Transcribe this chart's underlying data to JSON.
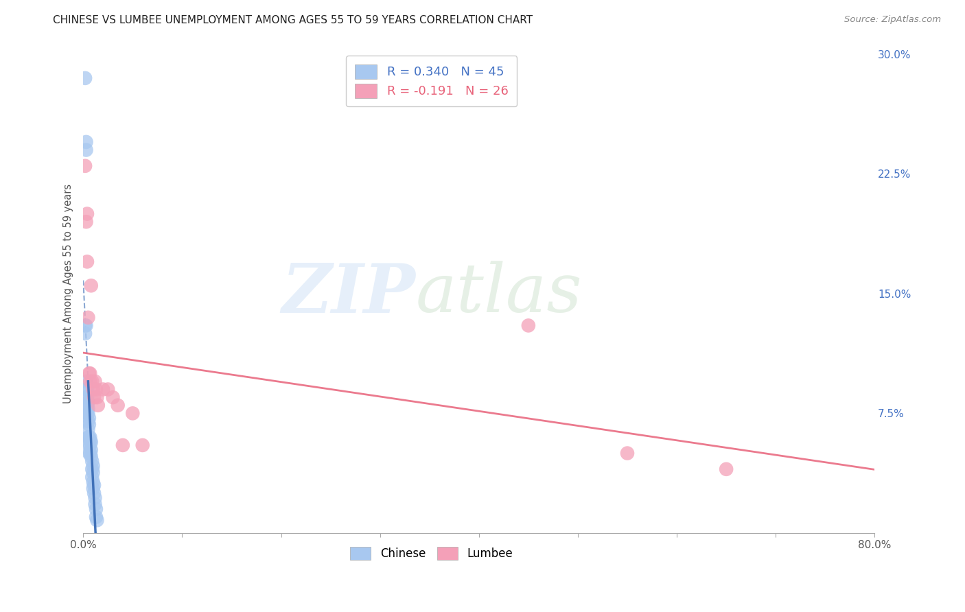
{
  "title": "CHINESE VS LUMBEE UNEMPLOYMENT AMONG AGES 55 TO 59 YEARS CORRELATION CHART",
  "source": "Source: ZipAtlas.com",
  "ylabel": "Unemployment Among Ages 55 to 59 years",
  "xlim": [
    0.0,
    0.8
  ],
  "ylim": [
    0.0,
    0.3
  ],
  "yticks_right": [
    0.0,
    0.075,
    0.15,
    0.225,
    0.3
  ],
  "yticklabels_right": [
    "",
    "7.5%",
    "15.0%",
    "22.5%",
    "30.0%"
  ],
  "chinese_color": "#A8C8F0",
  "lumbee_color": "#F4A0B8",
  "chinese_line_color": "#3A6CB5",
  "lumbee_line_color": "#E8637A",
  "chinese_R": 0.34,
  "chinese_N": 45,
  "lumbee_R": -0.191,
  "lumbee_N": 26,
  "chinese_x": [
    0.002,
    0.003,
    0.003,
    0.002,
    0.002,
    0.003,
    0.003,
    0.003,
    0.003,
    0.004,
    0.004,
    0.004,
    0.004,
    0.005,
    0.005,
    0.005,
    0.005,
    0.005,
    0.005,
    0.006,
    0.006,
    0.006,
    0.006,
    0.006,
    0.007,
    0.007,
    0.007,
    0.007,
    0.008,
    0.008,
    0.008,
    0.009,
    0.009,
    0.009,
    0.01,
    0.01,
    0.01,
    0.01,
    0.011,
    0.011,
    0.012,
    0.012,
    0.013,
    0.013,
    0.014
  ],
  "chinese_y": [
    0.285,
    0.245,
    0.24,
    0.13,
    0.125,
    0.13,
    0.095,
    0.09,
    0.085,
    0.09,
    0.085,
    0.08,
    0.075,
    0.082,
    0.078,
    0.075,
    0.07,
    0.065,
    0.06,
    0.072,
    0.068,
    0.06,
    0.055,
    0.05,
    0.06,
    0.058,
    0.055,
    0.05,
    0.057,
    0.052,
    0.048,
    0.045,
    0.04,
    0.035,
    0.042,
    0.038,
    0.032,
    0.028,
    0.03,
    0.025,
    0.022,
    0.018,
    0.015,
    0.01,
    0.008
  ],
  "lumbee_x": [
    0.002,
    0.003,
    0.004,
    0.004,
    0.005,
    0.006,
    0.007,
    0.007,
    0.008,
    0.009,
    0.01,
    0.011,
    0.012,
    0.013,
    0.014,
    0.015,
    0.02,
    0.025,
    0.03,
    0.035,
    0.04,
    0.05,
    0.06,
    0.45,
    0.55,
    0.65
  ],
  "lumbee_y": [
    0.23,
    0.195,
    0.2,
    0.17,
    0.135,
    0.1,
    0.1,
    0.095,
    0.155,
    0.095,
    0.09,
    0.085,
    0.095,
    0.09,
    0.085,
    0.08,
    0.09,
    0.09,
    0.085,
    0.08,
    0.055,
    0.075,
    0.055,
    0.13,
    0.05,
    0.04
  ]
}
